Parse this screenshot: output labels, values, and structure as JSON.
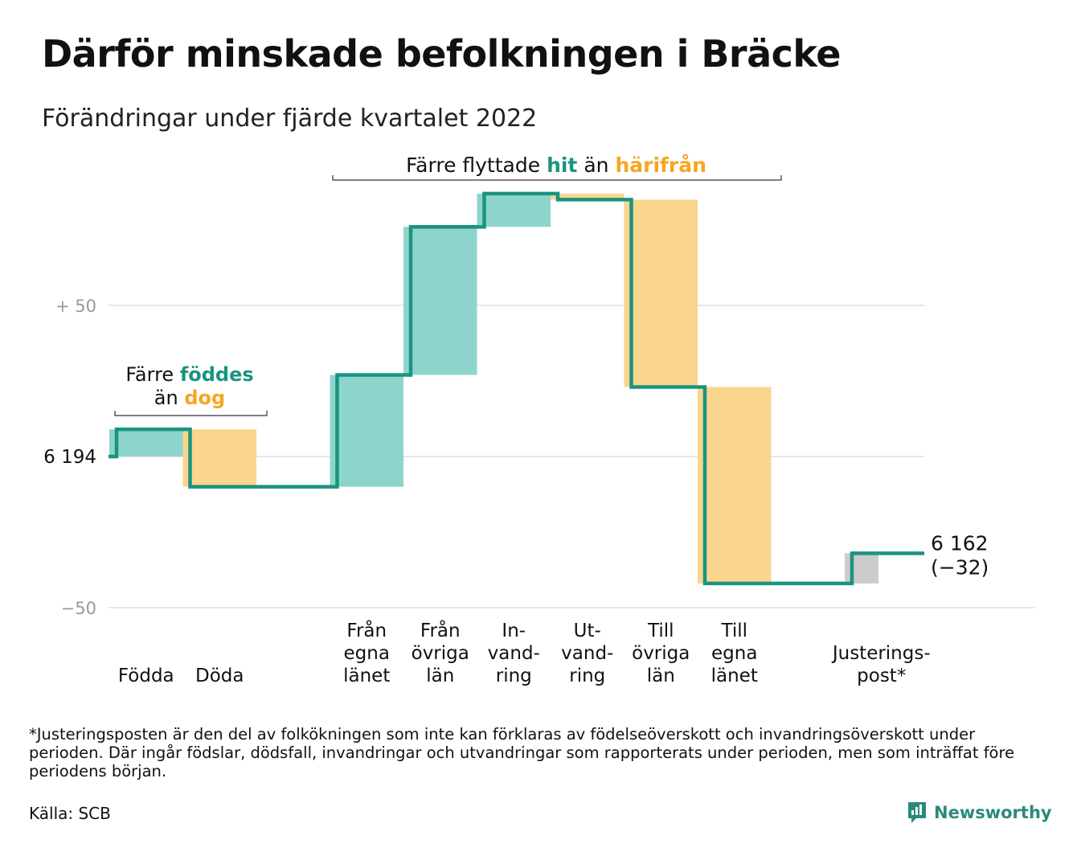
{
  "title": "Därför minskade befolkningen i Bräcke",
  "subtitle": "Förändringar under fjärde kvartalet 2022",
  "colors": {
    "increase": "#8dd5cc",
    "decrease": "#fad58d",
    "adjustment": "#cccccc",
    "line": "#1a9480",
    "hit": "#1a9480",
    "harifran": "#f5a623",
    "grid": "#e6e6e6",
    "axis_label": "#999999"
  },
  "chart_data": {
    "type": "waterfall",
    "start_value": 6194,
    "end_value": 6162,
    "y_ticks": [
      {
        "label": "+ 50",
        "offset": 50
      },
      {
        "label": "6 194",
        "offset": 0
      },
      {
        "label": "−50",
        "offset": -50
      }
    ],
    "ylim": [
      -50,
      90
    ],
    "steps": [
      {
        "label": [
          "Födda"
        ],
        "value": 9,
        "kind": "increase"
      },
      {
        "label": [
          "Döda"
        ],
        "value": -19,
        "kind": "decrease"
      },
      {
        "label": [],
        "value": 0,
        "kind": "gap"
      },
      {
        "label": [
          "Från",
          "egna",
          "länet"
        ],
        "value": 37,
        "kind": "increase"
      },
      {
        "label": [
          "Från",
          "övriga",
          "län"
        ],
        "value": 49,
        "kind": "increase"
      },
      {
        "label": [
          "In-",
          "vand-",
          "ring"
        ],
        "value": 11,
        "kind": "increase"
      },
      {
        "label": [
          "Ut-",
          "vand-",
          "ring"
        ],
        "value": -2,
        "kind": "decrease"
      },
      {
        "label": [
          "Till",
          "övriga",
          "län"
        ],
        "value": -62,
        "kind": "decrease"
      },
      {
        "label": [
          "Till",
          "egna",
          "länet"
        ],
        "value": -65,
        "kind": "decrease"
      },
      {
        "label": [],
        "value": 0,
        "kind": "gap"
      },
      {
        "label": [
          "Justerings-",
          "post*"
        ],
        "value": 10,
        "kind": "adjustment"
      }
    ],
    "end_labels": [
      "6 162",
      "(−32)"
    ],
    "annotations": {
      "births": {
        "pre": "Färre ",
        "hi1": "föddes",
        "mid": "än ",
        "hi2": "dog"
      },
      "migration": {
        "pre": "Färre flyttade ",
        "hi1": "hit",
        "mid": " än ",
        "hi2": "härifrån"
      }
    }
  },
  "footnote": "*Justeringsposten är den del av folkökningen som inte kan förklaras av födelseöverskott och invandringsöverskott under perioden. Där ingår födslar, dödsfall, invandringar och utvandringar som rapporterats under perioden, men som inträffat före periodens början.",
  "source": "Källa: SCB",
  "brand": {
    "name": "Newsworthy",
    "icon": "bar-chart-speech-bubble-icon"
  }
}
